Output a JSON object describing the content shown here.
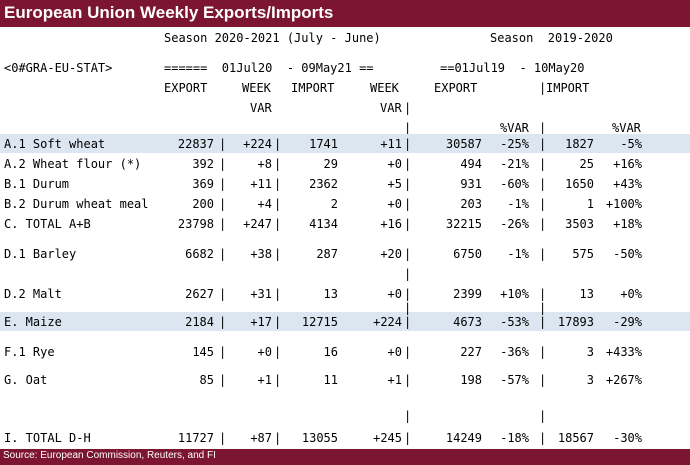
{
  "title": "European Union Weekly Exports/Imports",
  "header": {
    "season_current": "Season 2020-2021 (July - June)",
    "season_prior": "Season  2019-2020",
    "ric": "<0#GRA-EU-STAT>",
    "range_current": "======  01Jul20  - 09May21 ==",
    "range_prior": "==01Jul19  - 10May20",
    "col_export": "EXPORT",
    "col_week": "WEEK",
    "col_var": "VAR",
    "col_import": "IMPORT",
    "col_week2": "WEEK",
    "col_var2": "VAR",
    "col_export_prior": "EXPORT",
    "col_import_prior": "IMPORT",
    "col_pctvar": "%VAR",
    "col_pctvar2": "%VAR"
  },
  "rows": [
    {
      "label": "A.1 Soft wheat",
      "exp": "22837",
      "wvar": "+224",
      "imp": "1741",
      "iwvar": "+11",
      "pexp": "30587",
      "pvar": "-25%",
      "pimp": "1827",
      "pivar": "-5%"
    },
    {
      "label": "A.2 Wheat flour (*)",
      "exp": "392",
      "wvar": "+8",
      "imp": "29",
      "iwvar": "+0",
      "pexp": "494",
      "pvar": "-21%",
      "pimp": "25",
      "pivar": "+16%"
    },
    {
      "label": "B.1 Durum",
      "exp": "369",
      "wvar": "+11",
      "imp": "2362",
      "iwvar": "+5",
      "pexp": "931",
      "pvar": "-60%",
      "pimp": "1650",
      "pivar": "+43%"
    },
    {
      "label": "B.2 Durum wheat meal",
      "exp": "200",
      "wvar": "+4",
      "imp": "2",
      "iwvar": "+0",
      "pexp": "203",
      "pvar": "-1%",
      "pimp": "1",
      "pivar": "+100%"
    },
    {
      "label": "C. TOTAL A+B",
      "exp": "23798",
      "wvar": "+247",
      "imp": "4134",
      "iwvar": "+16",
      "pexp": "32215",
      "pvar": "-26%",
      "pimp": "3503",
      "pivar": "+18%"
    },
    {
      "label": "D.1 Barley",
      "exp": "6682",
      "wvar": "+38",
      "imp": "287",
      "iwvar": "+20",
      "pexp": "6750",
      "pvar": "-1%",
      "pimp": "575",
      "pivar": "-50%"
    },
    {
      "label": "D.2 Malt",
      "exp": "2627",
      "wvar": "+31",
      "imp": "13",
      "iwvar": "+0",
      "pexp": "2399",
      "pvar": "+10%",
      "pimp": "13",
      "pivar": "+0%"
    },
    {
      "label": "E. Maize",
      "exp": "2184",
      "wvar": "+17",
      "imp": "12715",
      "iwvar": "+224",
      "pexp": "4673",
      "pvar": "-53%",
      "pimp": "17893",
      "pivar": "-29%"
    },
    {
      "label": "F.1 Rye",
      "exp": "145",
      "wvar": "+0",
      "imp": "16",
      "iwvar": "+0",
      "pexp": "227",
      "pvar": "-36%",
      "pimp": "3",
      "pivar": "+433%"
    },
    {
      "label": "G. Oat",
      "exp": "85",
      "wvar": "+1",
      "imp": "11",
      "iwvar": "+1",
      "pexp": "198",
      "pvar": "-57%",
      "pimp": "3",
      "pivar": "+267%"
    },
    {
      "label": "I. TOTAL D-H",
      "exp": "11727",
      "wvar": "+87",
      "imp": "13055",
      "iwvar": "+245",
      "pexp": "14249",
      "pvar": "-18%",
      "pimp": "18567",
      "pivar": "-30%"
    }
  ],
  "footer": "Source: European Commission, Reuters, and FI"
}
